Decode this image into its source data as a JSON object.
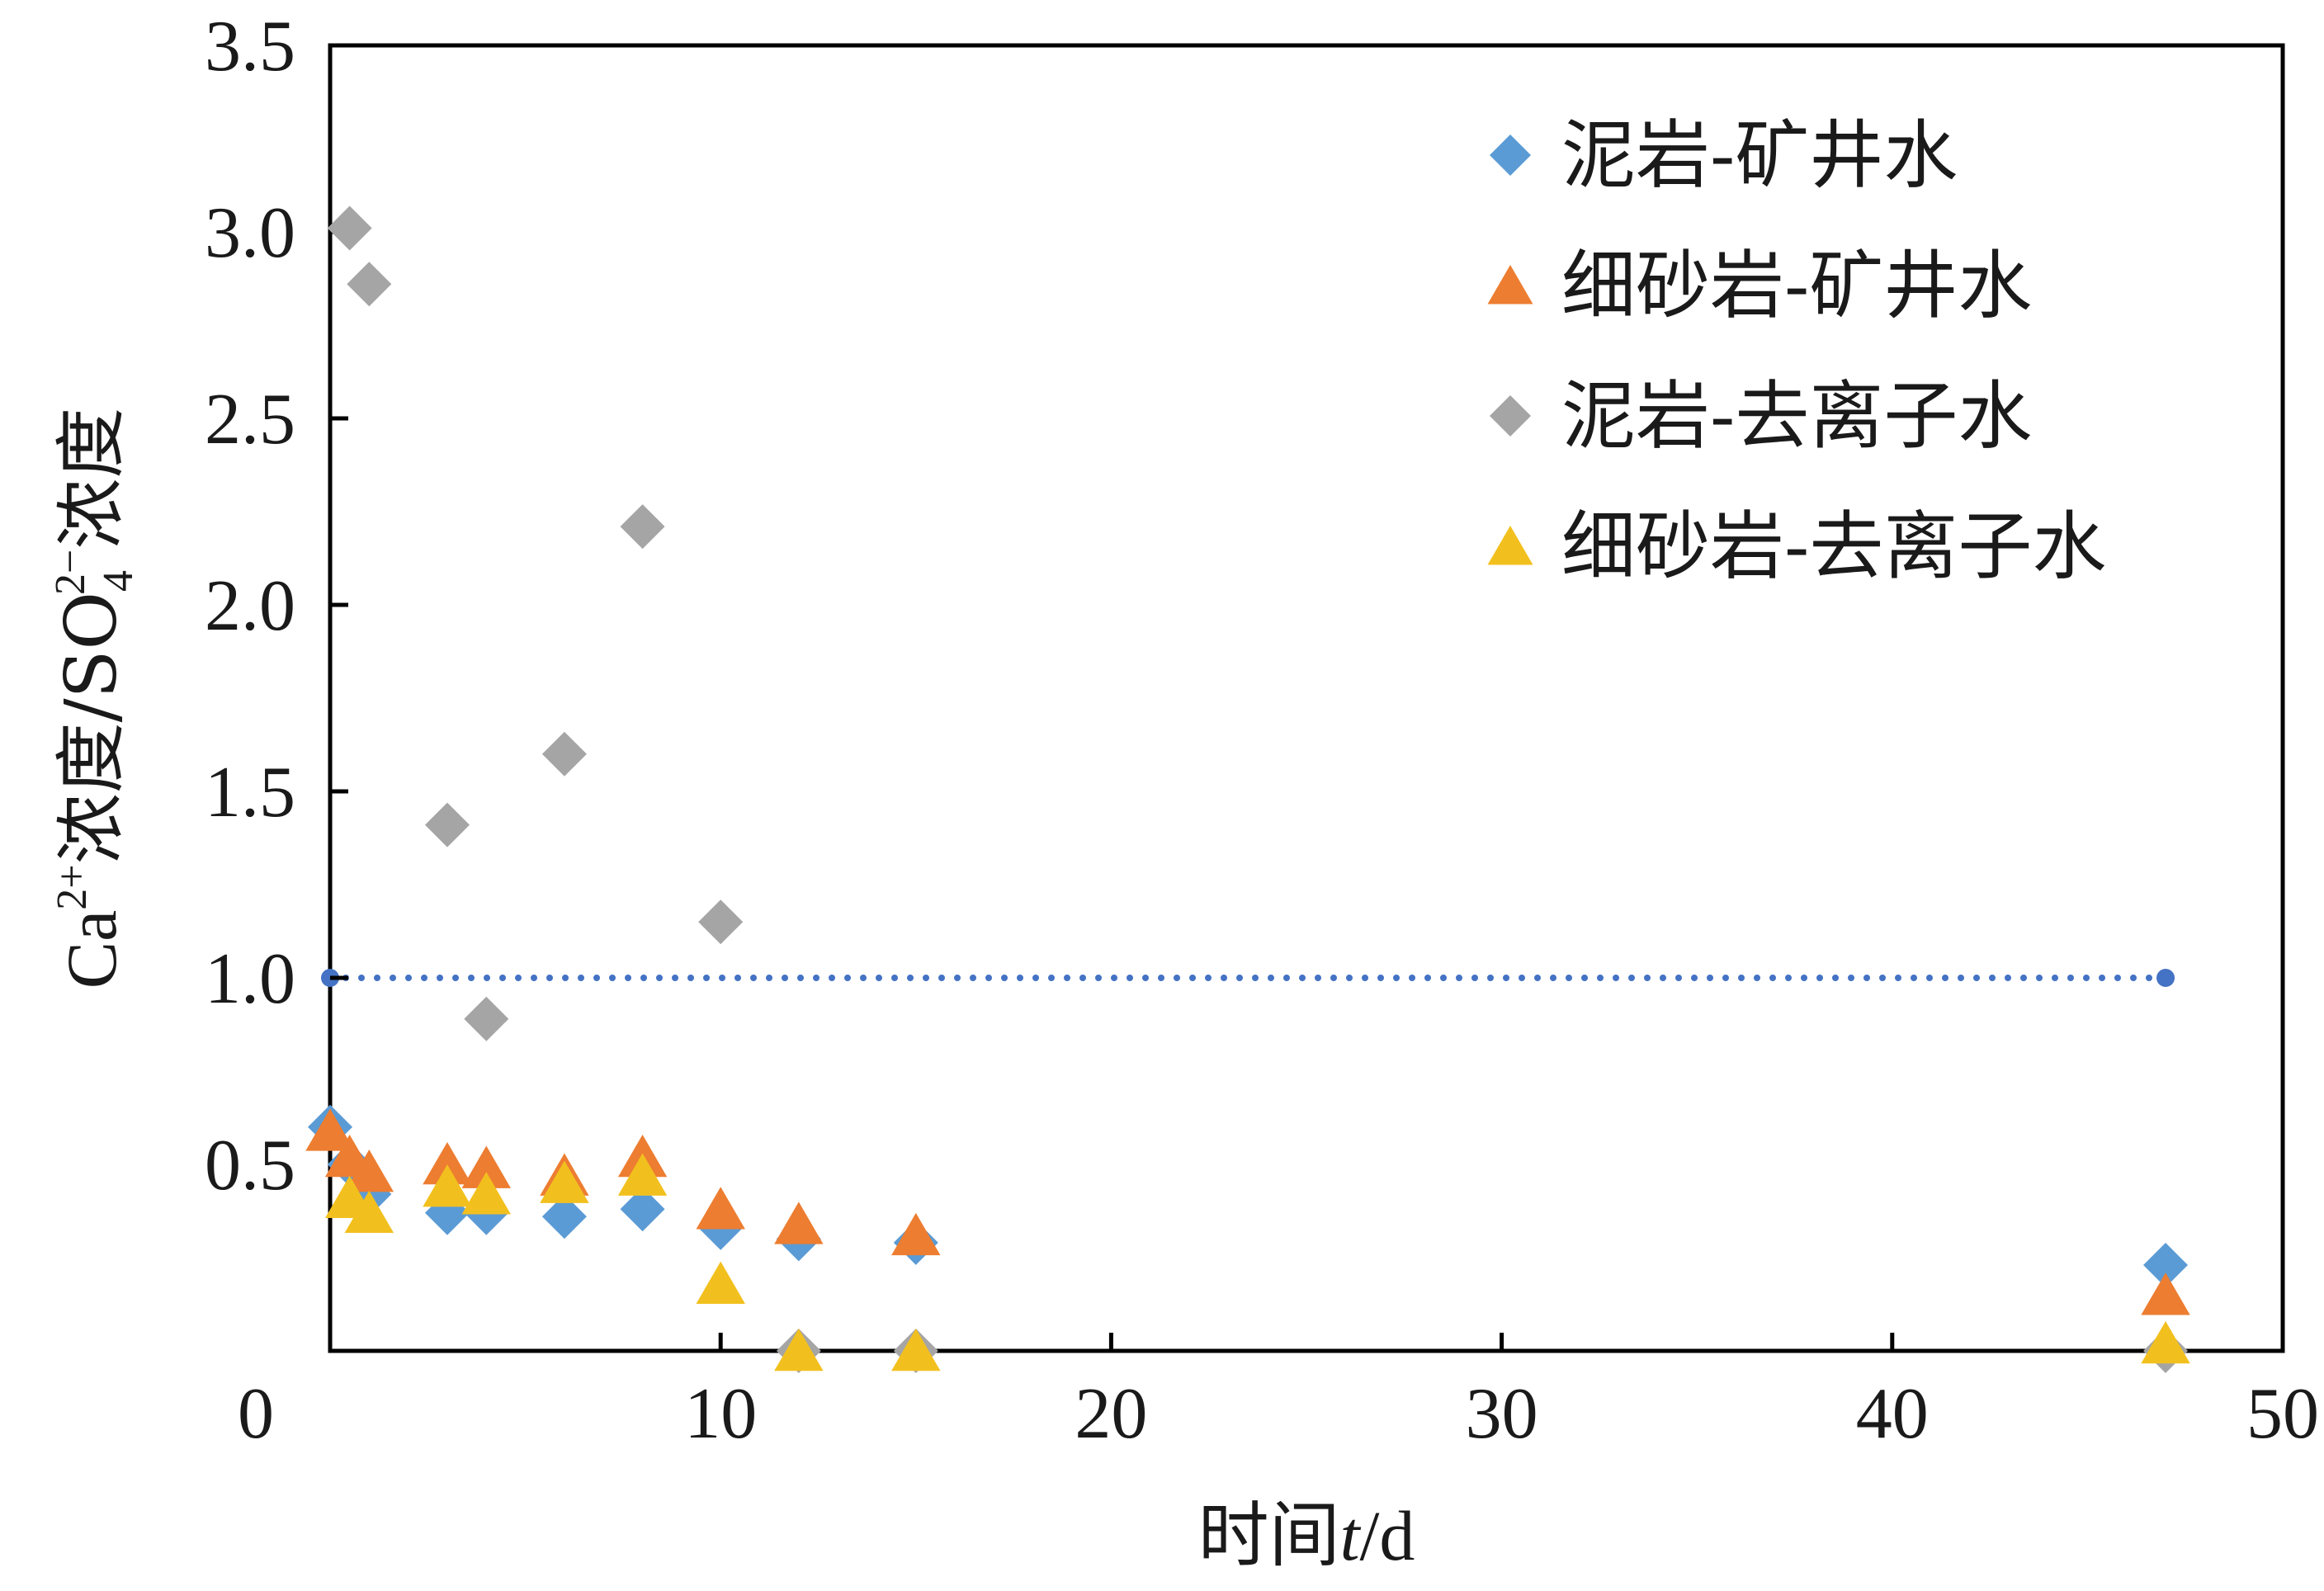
{
  "chart_data": {
    "type": "scatter",
    "xlabel": {
      "prefix": "时间",
      "var": "t",
      "suffix": "/d"
    },
    "ylabel": {
      "ca": "Ca",
      "ca_sup": "2+",
      "mid": "浓度/SO",
      "so4_sub": "4",
      "so4_sup": "2−",
      "end": "浓度"
    },
    "xlim": [
      0,
      50
    ],
    "ylim": [
      0,
      3.5
    ],
    "x_ticks": [
      0,
      10,
      20,
      30,
      40,
      50
    ],
    "x_tick_labels": [
      "0",
      "10",
      "20",
      "30",
      "40",
      "50"
    ],
    "y_ticks": [
      0.5,
      1.0,
      1.5,
      2.0,
      2.5,
      3.0,
      3.5
    ],
    "y_tick_labels": [
      "0.5",
      "1.0",
      "1.5",
      "2.0",
      "2.5",
      "3.0",
      "3.5"
    ],
    "grid": false,
    "legend_position": "top-right",
    "reference_line": {
      "y": 1.0,
      "x_start": 0,
      "x_end": 47,
      "color": "#4472c4",
      "style": "dotted"
    },
    "series": [
      {
        "name": "泥岩-矿井水",
        "marker": "diamond",
        "color": "#5b9bd5",
        "x": [
          0,
          0.5,
          1,
          3,
          4,
          6,
          8,
          10,
          12,
          15,
          47
        ],
        "y": [
          0.6,
          0.5,
          0.42,
          0.37,
          0.37,
          0.36,
          0.38,
          0.33,
          0.3,
          0.29,
          0.23
        ]
      },
      {
        "name": "细砂岩-矿井水",
        "marker": "triangle",
        "color": "#ed7d31",
        "x": [
          0,
          0.5,
          1,
          3,
          4,
          6,
          8,
          10,
          12,
          15,
          47
        ],
        "y": [
          0.59,
          0.52,
          0.48,
          0.5,
          0.49,
          0.47,
          0.52,
          0.38,
          0.34,
          0.31,
          0.15
        ]
      },
      {
        "name": "泥岩-去离子水",
        "marker": "diamond",
        "color": "#a5a5a5",
        "x": [
          0.5,
          1,
          3,
          4,
          6,
          8,
          10,
          12,
          15,
          47
        ],
        "y": [
          3.01,
          2.86,
          1.41,
          0.89,
          1.6,
          2.21,
          1.15,
          0.0,
          0.0,
          0.0
        ]
      },
      {
        "name": "细砂岩-去离子水",
        "marker": "triangle",
        "color": "#f2c01e",
        "x": [
          0.5,
          1,
          3,
          4,
          6,
          8,
          10,
          12,
          15,
          47
        ],
        "y": [
          0.41,
          0.37,
          0.44,
          0.42,
          0.45,
          0.47,
          0.18,
          0.0,
          0.0,
          0.02
        ]
      }
    ]
  }
}
